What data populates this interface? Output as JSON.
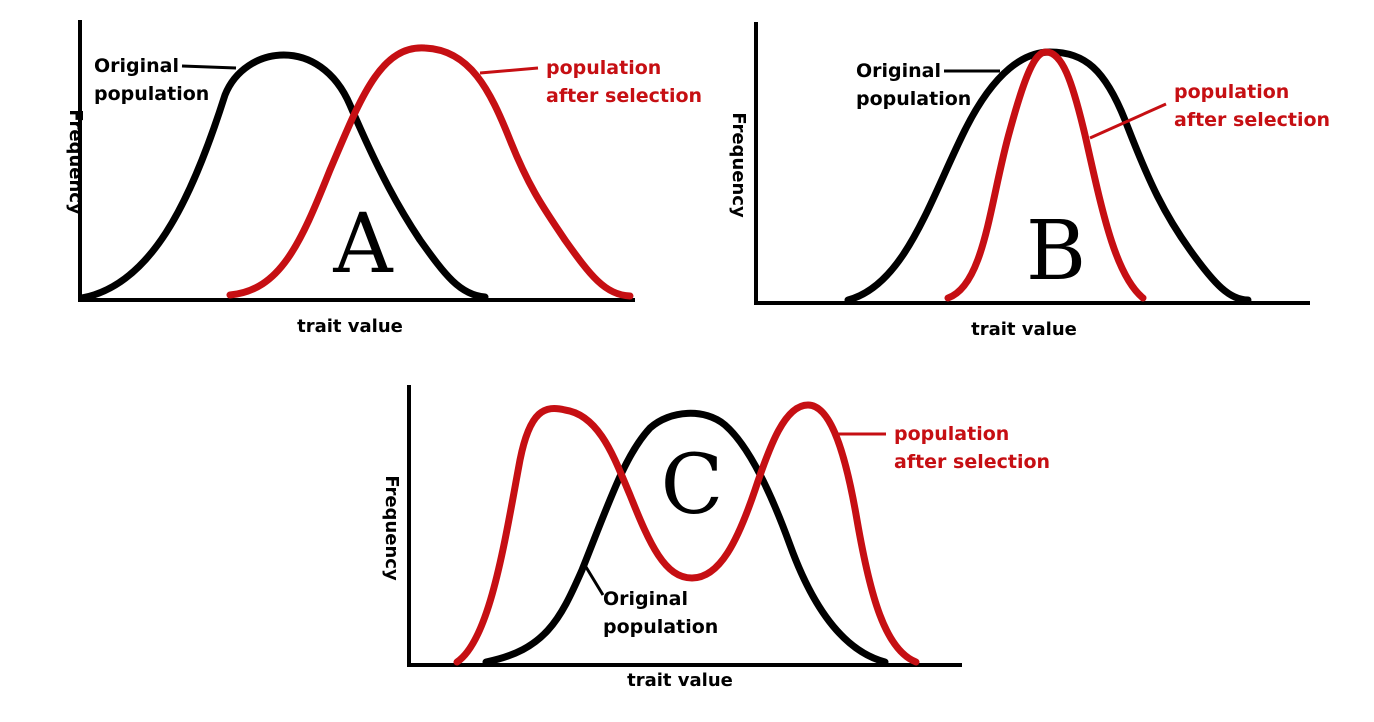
{
  "colors": {
    "original": "#000000",
    "selected": "#c60f13",
    "axis": "#000000",
    "text": "#000000",
    "accent_text": "#c60f13"
  },
  "panels": [
    {
      "letter": "A",
      "ylabel": "Frequency",
      "xlabel": "trait value",
      "original_label": [
        "Original",
        "population"
      ],
      "selected_label": [
        "population",
        "after selection"
      ]
    },
    {
      "letter": "B",
      "ylabel": "Frequency",
      "xlabel": "trait value",
      "original_label": [
        "Original",
        "population"
      ],
      "selected_label": [
        "population",
        "after selection"
      ]
    },
    {
      "letter": "C",
      "ylabel": "Frequency",
      "xlabel": "trait value",
      "original_label": [
        "Original",
        "population"
      ],
      "selected_label": [
        "population",
        "after selection"
      ]
    }
  ]
}
